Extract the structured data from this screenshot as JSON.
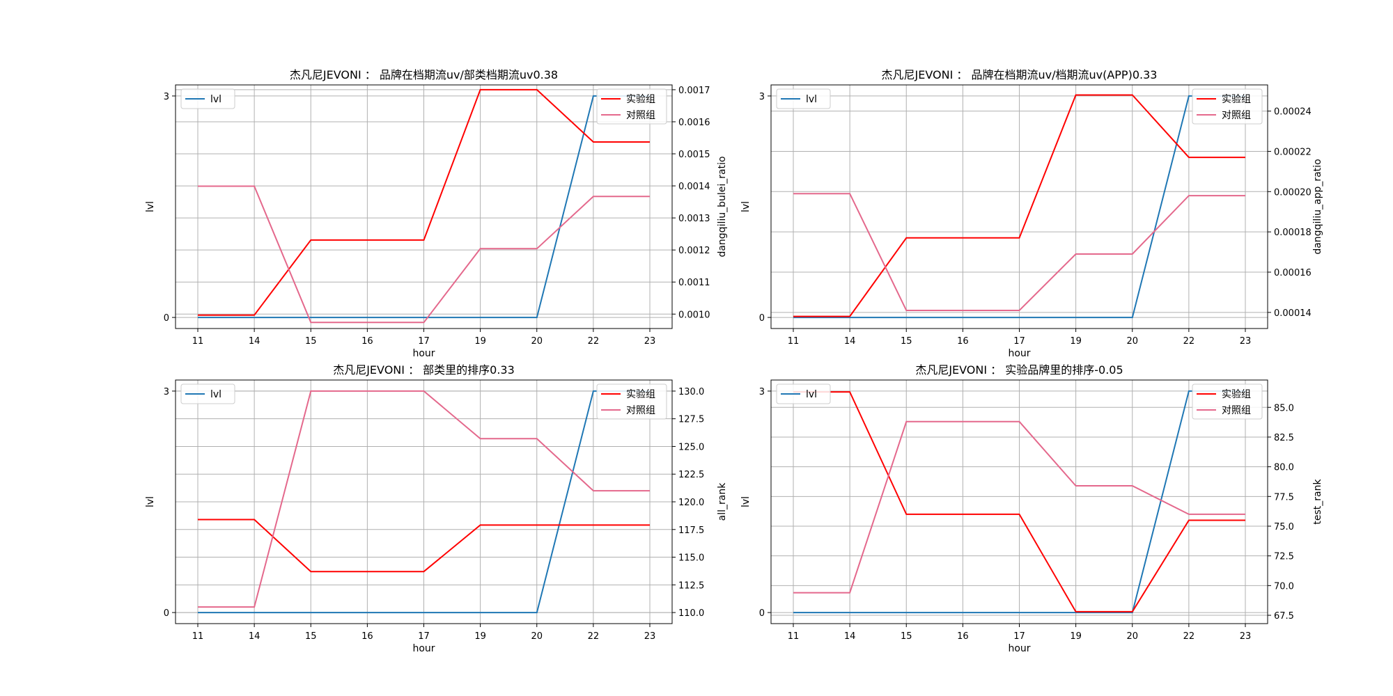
{
  "hours": [
    "11",
    "14",
    "15",
    "16",
    "17",
    "19",
    "20",
    "22",
    "23"
  ],
  "chart_data": [
    {
      "type": "line",
      "title": "杰凡尼JEVONI ： 品牌在档期流uv/部类档期流uv0.38",
      "xlabel": "hour",
      "ylabel_left": "lvl",
      "ylabel_right": "dangqiliu_bulei_ratio",
      "left_ylim": [
        -0.15,
        3.15
      ],
      "left_ticks": [
        "0",
        "3"
      ],
      "right_ylim": [
        0.000955,
        0.001715
      ],
      "right_ticks": [
        "0.0010",
        "0.0011",
        "0.0012",
        "0.0013",
        "0.0014",
        "0.0015",
        "0.0016",
        "0.0017"
      ],
      "lvl": {
        "name": "lvl",
        "values": [
          0,
          0,
          0,
          0,
          0,
          0,
          0,
          3,
          3
        ]
      },
      "series": [
        {
          "name": "实验组",
          "color": "#ff0000",
          "values": [
            0.000997,
            0.000997,
            0.001231,
            0.001231,
            0.001231,
            0.0017,
            0.0017,
            0.001537,
            0.001537
          ]
        },
        {
          "name": "对照组",
          "color": "#e4688c",
          "values": [
            0.001399,
            0.001399,
            0.000974,
            0.000974,
            0.000974,
            0.001204,
            0.001204,
            0.001367,
            0.001367
          ]
        }
      ]
    },
    {
      "type": "line",
      "title": "杰凡尼JEVONI ： 品牌在档期流uv/档期流uv(APP)0.33",
      "xlabel": "hour",
      "ylabel_left": "lvl",
      "ylabel_right": "dangqiliu_app_ratio",
      "left_ylim": [
        -0.15,
        3.15
      ],
      "left_ticks": [
        "0",
        "3"
      ],
      "right_ylim": [
        0.000132,
        0.000253
      ],
      "right_ticks": [
        "0.00014",
        "0.00016",
        "0.00018",
        "0.00020",
        "0.00022",
        "0.00024"
      ],
      "lvl": {
        "name": "lvl",
        "values": [
          0,
          0,
          0,
          0,
          0,
          0,
          0,
          3,
          3
        ]
      },
      "series": [
        {
          "name": "实验组",
          "color": "#ff0000",
          "values": [
            0.000138,
            0.000138,
            0.000177,
            0.000177,
            0.000177,
            0.000248,
            0.000248,
            0.000217,
            0.000217
          ]
        },
        {
          "name": "对照组",
          "color": "#e4688c",
          "values": [
            0.000199,
            0.000199,
            0.000141,
            0.000141,
            0.000141,
            0.000169,
            0.000169,
            0.000198,
            0.000198
          ]
        }
      ]
    },
    {
      "type": "line",
      "title": "杰凡尼JEVONI ： 部类里的排序0.33",
      "xlabel": "hour",
      "ylabel_left": "lvl",
      "ylabel_right": "all_rank",
      "left_ylim": [
        -0.15,
        3.15
      ],
      "left_ticks": [
        "0",
        "3"
      ],
      "right_ylim": [
        109.0,
        131.0
      ],
      "right_ticks": [
        "110.0",
        "112.5",
        "115.0",
        "117.5",
        "120.0",
        "122.5",
        "125.0",
        "127.5",
        "130.0"
      ],
      "lvl": {
        "name": "lvl",
        "values": [
          0,
          0,
          0,
          0,
          0,
          0,
          0,
          3,
          3
        ]
      },
      "series": [
        {
          "name": "实验组",
          "color": "#ff0000",
          "values": [
            118.4,
            118.4,
            113.7,
            113.7,
            113.7,
            117.9,
            117.9,
            117.9,
            117.9
          ]
        },
        {
          "name": "对照组",
          "color": "#e4688c",
          "values": [
            110.5,
            110.5,
            130.0,
            130.0,
            130.0,
            125.7,
            125.7,
            121.0,
            121.0
          ]
        }
      ]
    },
    {
      "type": "line",
      "title": "杰凡尼JEVONI ： 实验品牌里的排序-0.05",
      "xlabel": "hour",
      "ylabel_left": "lvl",
      "ylabel_right": "test_rank",
      "left_ylim": [
        -0.15,
        3.15
      ],
      "left_ticks": [
        "0",
        "3"
      ],
      "right_ylim": [
        66.8,
        87.3
      ],
      "right_ticks": [
        "67.5",
        "70.0",
        "72.5",
        "75.0",
        "77.5",
        "80.0",
        "82.5",
        "85.0"
      ],
      "lvl": {
        "name": "lvl",
        "values": [
          0,
          0,
          0,
          0,
          0,
          0,
          0,
          3,
          3
        ]
      },
      "series": [
        {
          "name": "实验组",
          "color": "#ff0000",
          "values": [
            86.3,
            86.3,
            76.0,
            76.0,
            76.0,
            67.8,
            67.8,
            75.5,
            75.5
          ]
        },
        {
          "name": "对照组",
          "color": "#e4688c",
          "values": [
            69.4,
            69.4,
            83.8,
            83.8,
            83.8,
            78.4,
            78.4,
            76.0,
            76.0
          ]
        }
      ]
    }
  ],
  "colors": {
    "lvl_line": "#1f77b4",
    "grid": "#b0b0b0"
  }
}
